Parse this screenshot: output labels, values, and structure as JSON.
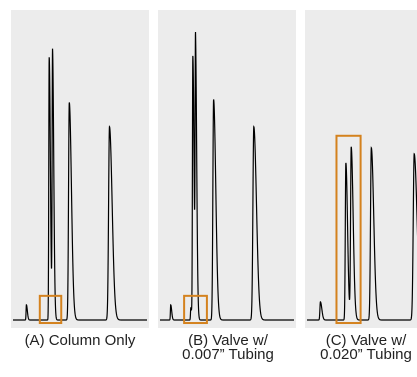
{
  "colors": {
    "panel_background": "#ececec",
    "trace": "#000000",
    "highlight_box": "#d4821e",
    "caption_text": "#222222"
  },
  "chart_data": [
    {
      "type": "line",
      "caption_lines": [
        "(A) Column Only"
      ],
      "x_range": [
        0,
        100
      ],
      "y_range": [
        0,
        100
      ],
      "axes_visible": false,
      "grid": false,
      "peaks": [
        {
          "x": 10,
          "height": 5,
          "width": 0.4
        },
        {
          "x": 27,
          "height": 87,
          "width": 0.5
        },
        {
          "x": 29.5,
          "height": 88,
          "width": 0.5
        },
        {
          "x": 42,
          "height": 72,
          "width": 0.9
        },
        {
          "x": 72,
          "height": 64,
          "width": 1.1
        }
      ],
      "highlight_box": {
        "x_range": [
          20,
          36
        ],
        "y_range": [
          -1,
          8
        ]
      }
    },
    {
      "type": "line",
      "caption_lines": [
        "(B) Valve w/",
        "0.007” Tubing"
      ],
      "x_range": [
        0,
        100
      ],
      "y_range": [
        0,
        100
      ],
      "axes_visible": false,
      "grid": false,
      "peaks": [
        {
          "x": 8,
          "height": 5,
          "width": 0.4
        },
        {
          "x": 23,
          "height": 4,
          "width": 0.4
        },
        {
          "x": 24.5,
          "height": 87,
          "width": 0.5
        },
        {
          "x": 26.5,
          "height": 88,
          "width": 0.5
        },
        {
          "x": 40,
          "height": 73,
          "width": 0.9
        },
        {
          "x": 70,
          "height": 64,
          "width": 1.1
        }
      ],
      "highlight_box": {
        "x_range": [
          18,
          35
        ],
        "y_range": [
          -1,
          8
        ]
      }
    },
    {
      "type": "line",
      "caption_lines": [
        "(C) Valve w/",
        "0.020” Tubing"
      ],
      "x_range": [
        0,
        100
      ],
      "y_range": [
        0,
        100
      ],
      "axes_visible": false,
      "grid": false,
      "peaks": [
        {
          "x": 10,
          "height": 6,
          "width": 0.6
        },
        {
          "x": 29,
          "height": 52,
          "width": 0.7
        },
        {
          "x": 33,
          "height": 57,
          "width": 0.8
        },
        {
          "x": 48,
          "height": 57,
          "width": 1.0
        },
        {
          "x": 80,
          "height": 55,
          "width": 1.2
        }
      ],
      "highlight_box": {
        "x_range": [
          22,
          40
        ],
        "y_range": [
          -1,
          61
        ]
      }
    }
  ]
}
